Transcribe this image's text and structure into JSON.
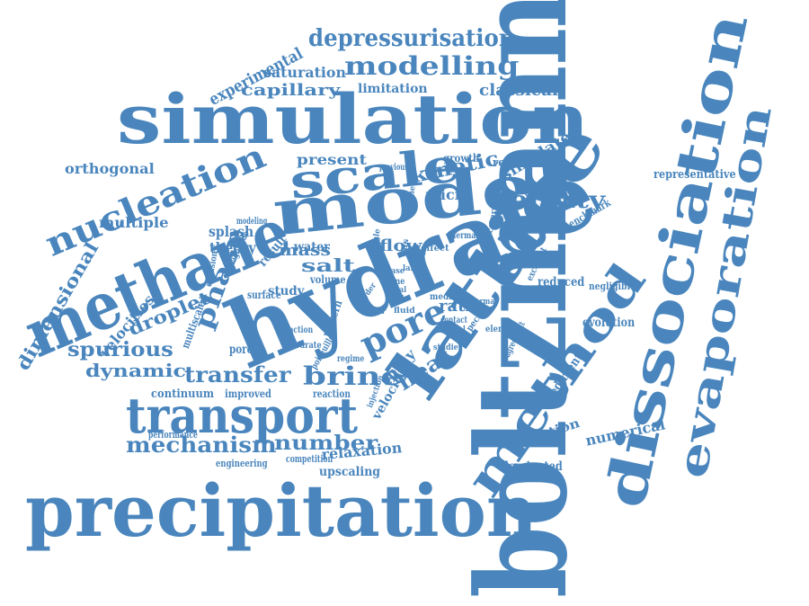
{
  "word_cloud": {
    "color": "#4a86bd",
    "words": [
      {
        "text": "boltzmann"
      },
      {
        "text": "precipitation"
      },
      {
        "text": "simulation"
      },
      {
        "text": "hydrate"
      },
      {
        "text": "methane"
      },
      {
        "text": "model"
      },
      {
        "text": "lattice"
      },
      {
        "text": "dissociation"
      },
      {
        "text": "evaporation"
      },
      {
        "text": "scale"
      },
      {
        "text": "transport"
      },
      {
        "text": "method"
      },
      {
        "text": "nucleation"
      },
      {
        "text": "pore"
      },
      {
        "text": "depressurisation"
      },
      {
        "text": "modelling"
      },
      {
        "text": "density"
      },
      {
        "text": "brine"
      },
      {
        "text": "phase"
      },
      {
        "text": "transfer"
      },
      {
        "text": "mechanism"
      },
      {
        "text": "spurious"
      },
      {
        "text": "kinetic"
      },
      {
        "text": "heat"
      },
      {
        "text": "droplet"
      },
      {
        "text": "number"
      },
      {
        "text": "salt"
      },
      {
        "text": "capillary"
      },
      {
        "text": "classical"
      },
      {
        "text": "experimental"
      },
      {
        "text": "dimensional"
      },
      {
        "text": "dynamic"
      },
      {
        "text": "flow"
      },
      {
        "text": "saturation"
      },
      {
        "text": "present"
      },
      {
        "text": "mass"
      },
      {
        "text": "multiple"
      },
      {
        "text": "orthogonal"
      },
      {
        "text": "simulate"
      },
      {
        "text": "micro"
      },
      {
        "text": "limitation"
      },
      {
        "text": "ratio"
      },
      {
        "text": "relaxation"
      },
      {
        "text": "velocities"
      },
      {
        "text": "numerical"
      },
      {
        "text": "equation"
      },
      {
        "text": "theory"
      },
      {
        "text": "splash"
      },
      {
        "text": "water"
      },
      {
        "text": "study"
      },
      {
        "text": "result"
      },
      {
        "text": "spray"
      },
      {
        "text": "velocity"
      },
      {
        "text": "reduced"
      },
      {
        "text": "evolution"
      },
      {
        "text": "sediment"
      },
      {
        "text": "upscaling"
      },
      {
        "text": "dominated"
      },
      {
        "text": "representative"
      },
      {
        "text": "reynold"
      },
      {
        "text": "approach"
      },
      {
        "text": "growth"
      },
      {
        "text": "benchmark"
      },
      {
        "text": "continuum"
      },
      {
        "text": "improved"
      },
      {
        "text": "porous"
      },
      {
        "text": "pattern"
      },
      {
        "text": "reaction"
      },
      {
        "text": "competition"
      },
      {
        "text": "engineering"
      },
      {
        "text": "performance"
      },
      {
        "text": "multiscale"
      },
      {
        "text": "volume"
      },
      {
        "text": "surface"
      },
      {
        "text": "negligible"
      },
      {
        "text": "accuracy"
      },
      {
        "text": "previous"
      },
      {
        "text": "modeling"
      },
      {
        "text": "thermal"
      },
      {
        "text": "excellent"
      },
      {
        "text": "agreement"
      },
      {
        "text": "element"
      },
      {
        "text": "scheme"
      },
      {
        "text": "poiseuille"
      },
      {
        "text": "regime"
      },
      {
        "text": "injection"
      },
      {
        "text": "effect"
      },
      {
        "text": "field"
      },
      {
        "text": "media"
      },
      {
        "text": "contact"
      },
      {
        "text": "peclet"
      },
      {
        "text": "typical"
      },
      {
        "text": "studies"
      },
      {
        "text": "normal"
      },
      {
        "text": "order"
      },
      {
        "text": "local"
      },
      {
        "text": "work"
      },
      {
        "text": "time"
      },
      {
        "text": "case"
      },
      {
        "text": "fluid"
      },
      {
        "text": "error"
      },
      {
        "text": "diffusion"
      },
      {
        "text": "magnitude"
      },
      {
        "text": "function"
      },
      {
        "text": "accurate"
      },
      {
        "text": "recovery"
      },
      {
        "text": "gas"
      },
      {
        "text": "large"
      },
      {
        "text": "single"
      }
    ]
  }
}
